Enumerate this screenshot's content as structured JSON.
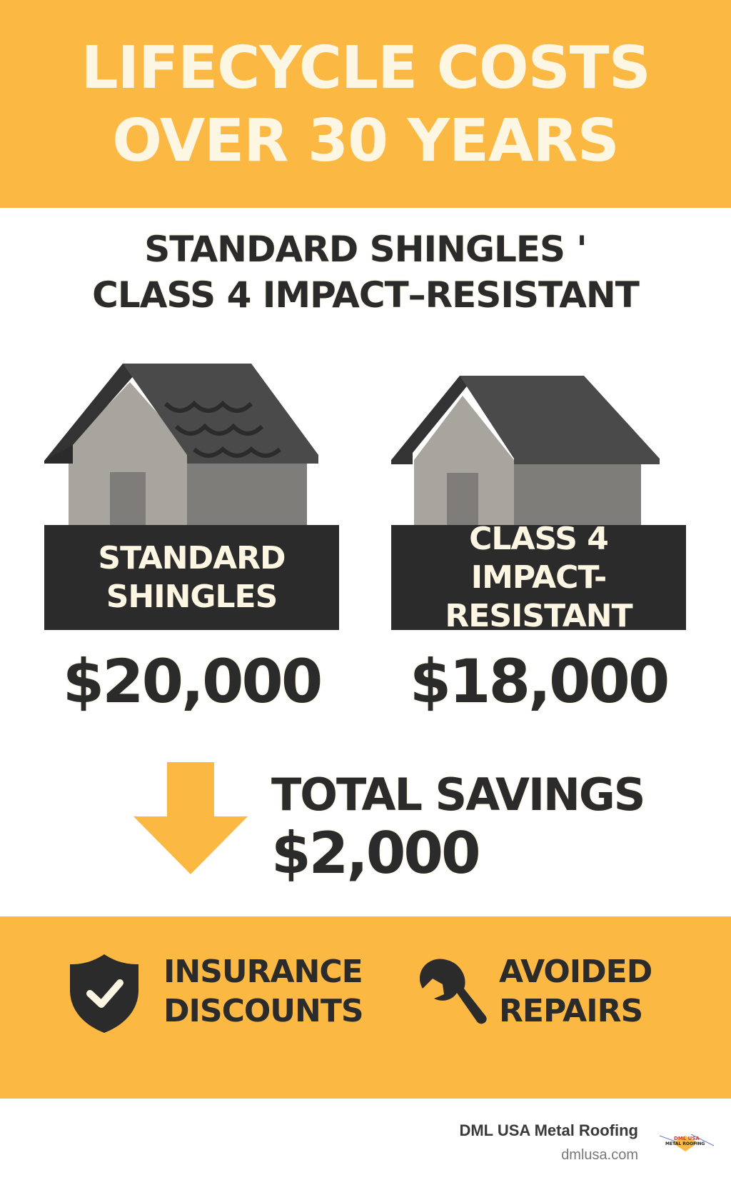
{
  "header": {
    "title_line1": "LIFECYCLE COSTS",
    "title_line2": "OVER 30 YEARS"
  },
  "subtitle": {
    "line1": "STANDARD SHINGLES '",
    "line2": "CLASS 4 IMPACT–RESISTANT"
  },
  "comparison": [
    {
      "label_line1": "STANDARD",
      "label_line2": "SHINGLES",
      "price": "$20,000",
      "icon": "house-shingled-icon"
    },
    {
      "label_line1": "CLASS 4",
      "label_line2": "IMPACT-RESISTANT",
      "price": "$18,000",
      "icon": "house-icon"
    }
  ],
  "savings": {
    "label": "TOTAL SAVINGS",
    "amount": "$2,000",
    "icon": "arrow-down-icon"
  },
  "benefits": [
    {
      "line1": "INSURANCE",
      "line2": "DISCOUNTS",
      "icon": "shield-check-icon"
    },
    {
      "line1": "AVOIDED",
      "line2": "REPAIRS",
      "icon": "wrench-icon"
    }
  ],
  "footer": {
    "company": "DML USA Metal Roofing",
    "website": "dmlusa.com",
    "logo_text_line1": "DML USA",
    "logo_text_line2": "METAL ROOFING"
  },
  "colors": {
    "accent": "#FBB843",
    "dark": "#2b2b2b",
    "cream": "#FDF6E3"
  }
}
